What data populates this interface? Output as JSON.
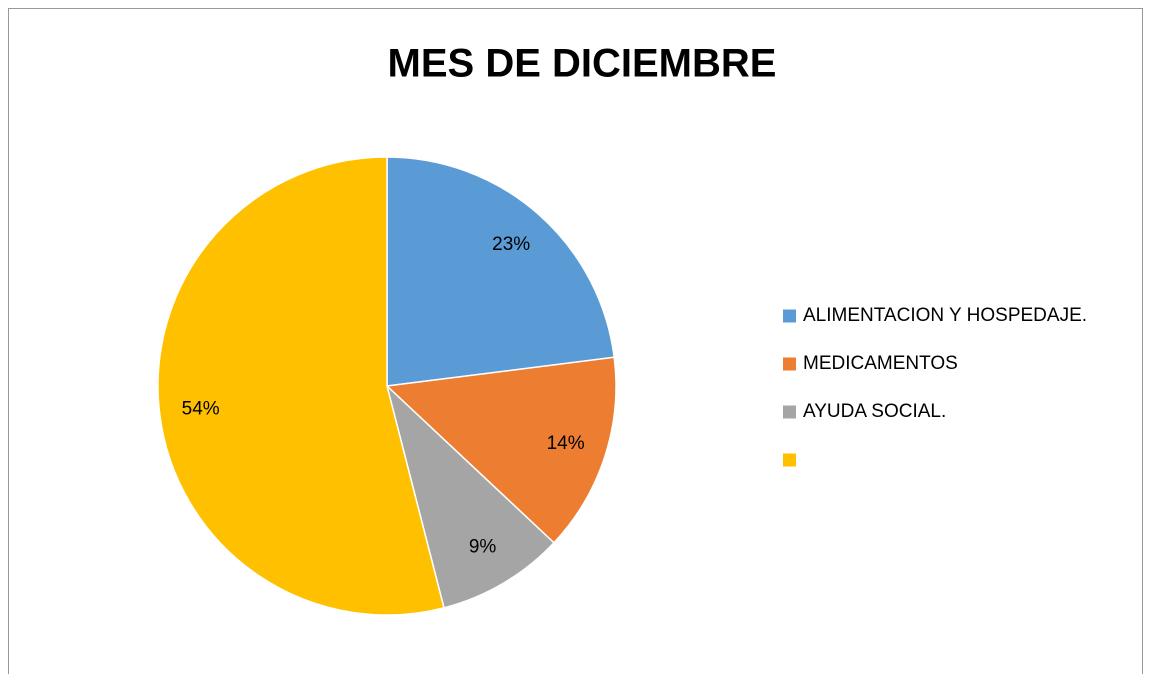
{
  "chart_data": {
    "type": "pie",
    "title": "MES DE DICIEMBRE",
    "categories": [
      "ALIMENTACION Y HOSPEDAJE.",
      "MEDICAMENTOS",
      "AYUDA SOCIAL.",
      null
    ],
    "values": [
      23,
      14,
      9,
      54
    ],
    "value_labels": [
      "23%",
      "14%",
      "9%",
      "54%"
    ],
    "colors": [
      "#5b9bd5",
      "#ed7d31",
      "#a5a5a5",
      "#ffc000"
    ],
    "legend": "right"
  }
}
